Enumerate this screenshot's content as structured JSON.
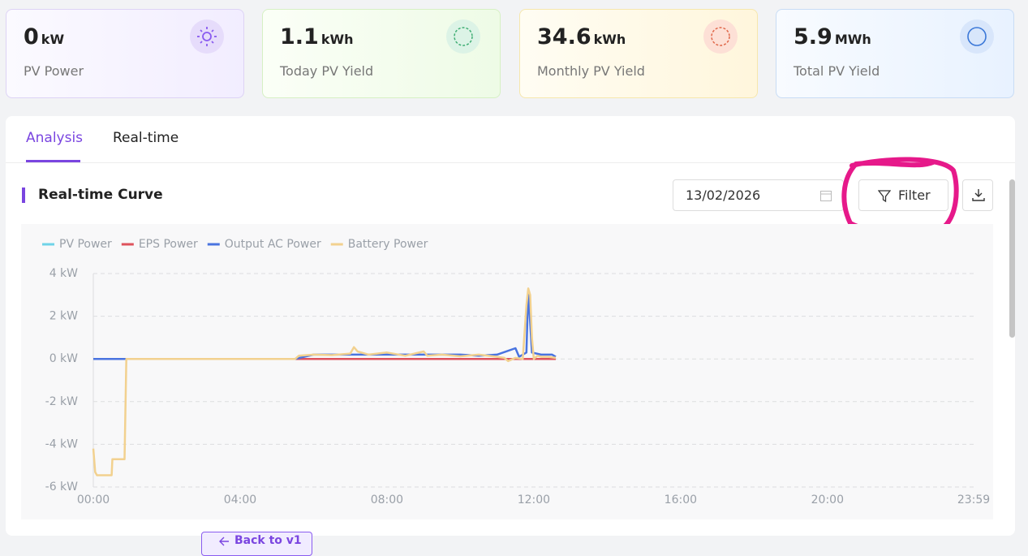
{
  "cards": [
    {
      "value": "0",
      "unit": "kW",
      "label": "PV Power"
    },
    {
      "value": "1.1",
      "unit": "kWh",
      "label": "Today PV Yield"
    },
    {
      "value": "34.6",
      "unit": "kWh",
      "label": "Monthly PV Yield"
    },
    {
      "value": "5.9",
      "unit": "MWh",
      "label": "Total PV Yield"
    }
  ],
  "tabs": [
    "Analysis",
    "Real-time"
  ],
  "section_title": "Real-time Curve",
  "date": "13/02/2026",
  "filter_button": "Filter",
  "back_button": "Back to v1",
  "chart": {
    "type": "line",
    "ylim": [
      -6,
      4
    ],
    "yticks": [
      {
        "value": 4,
        "label": "4 kW"
      },
      {
        "value": 2,
        "label": "2 kW"
      },
      {
        "value": 0,
        "label": "0 kW"
      },
      {
        "value": -2,
        "label": "-2 kW"
      },
      {
        "value": -4,
        "label": "-4 kW"
      },
      {
        "value": -6,
        "label": "-6 kW"
      }
    ],
    "xlim": [
      0,
      23.983
    ],
    "xticks": [
      {
        "value": 0,
        "label": "00:00"
      },
      {
        "value": 4,
        "label": "04:00"
      },
      {
        "value": 8,
        "label": "08:00"
      },
      {
        "value": 12,
        "label": "12:00"
      },
      {
        "value": 16,
        "label": "16:00"
      },
      {
        "value": 20,
        "label": "20:00"
      },
      {
        "value": 23.983,
        "label": "23:59"
      }
    ],
    "grid": true,
    "series": [
      {
        "name": "PV Power",
        "color": "#6fd3e8",
        "x": [
          0,
          6,
          12.6
        ],
        "values": [
          0,
          0,
          0
        ]
      },
      {
        "name": "EPS Power",
        "color": "#de525c",
        "x": [
          0,
          6,
          12.6
        ],
        "values": [
          0,
          0,
          0
        ]
      },
      {
        "name": "Output AC Power",
        "color": "#4a74e0",
        "x": [
          0,
          5.5,
          6,
          8,
          10,
          10.5,
          11,
          11.5,
          11.6,
          11.8,
          11.85,
          11.95,
          12.2,
          12.5,
          12.6
        ],
        "values": [
          0,
          0,
          0.2,
          0.2,
          0.2,
          0.15,
          0.2,
          0.5,
          0.1,
          0.3,
          3.2,
          0.3,
          0.2,
          0.2,
          0.1
        ]
      },
      {
        "name": "Battery Power",
        "color": "#f2d18f",
        "x": [
          0,
          0.05,
          0.1,
          0.5,
          0.52,
          0.85,
          0.9,
          5.5,
          5.6,
          6,
          6.5,
          7,
          7.1,
          7.2,
          7.5,
          8,
          8.5,
          9,
          9.1,
          9.5,
          10,
          10.5,
          11,
          11.2,
          11.3,
          11.5,
          11.7,
          11.8,
          11.85,
          11.9,
          11.95,
          12,
          12.1,
          12.2,
          12.4,
          12.6
        ],
        "values": [
          -4.2,
          -5.3,
          -5.45,
          -5.45,
          -4.7,
          -4.7,
          0,
          0,
          0.15,
          0.2,
          0.18,
          0.25,
          0.55,
          0.35,
          0.2,
          0.3,
          0.15,
          0.35,
          0.15,
          0.2,
          0.12,
          0.2,
          0.1,
          0.05,
          -0.1,
          0.05,
          0,
          2.5,
          3.3,
          3,
          1,
          0,
          0.15,
          0.1,
          0.1,
          0.05
        ]
      }
    ]
  }
}
